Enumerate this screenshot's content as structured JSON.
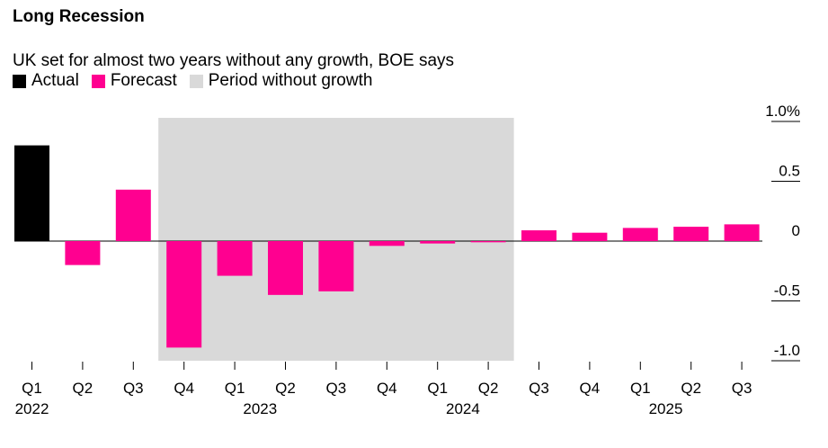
{
  "title": "Long Recession",
  "subtitle": "UK set for almost two years without any growth, BOE says",
  "legend": {
    "actual": "Actual",
    "forecast": "Forecast",
    "period": "Period without growth"
  },
  "colors": {
    "actual": "#000000",
    "forecast": "#ff0090",
    "period": "#d9d9d9"
  },
  "chart_data": {
    "type": "bar",
    "categories": [
      "Q1 2022",
      "Q2 2022",
      "Q3 2022",
      "Q4 2022",
      "Q1 2023",
      "Q2 2023",
      "Q3 2023",
      "Q4 2023",
      "Q1 2024",
      "Q2 2024",
      "Q3 2024",
      "Q4 2024",
      "Q1 2025",
      "Q2 2025",
      "Q3 2025"
    ],
    "quarter_labels": [
      "Q1",
      "Q2",
      "Q3",
      "Q4",
      "Q1",
      "Q2",
      "Q3",
      "Q4",
      "Q1",
      "Q2",
      "Q3",
      "Q4",
      "Q1",
      "Q2",
      "Q3"
    ],
    "year_labels": [
      {
        "label": "2022",
        "index": 0
      },
      {
        "label": "2023",
        "index": 4
      },
      {
        "label": "2024",
        "index": 8
      },
      {
        "label": "2025",
        "index": 12
      }
    ],
    "series": [
      {
        "name": "Actual",
        "values": [
          0.8,
          null,
          null,
          null,
          null,
          null,
          null,
          null,
          null,
          null,
          null,
          null,
          null,
          null,
          null
        ]
      },
      {
        "name": "Forecast",
        "values": [
          null,
          -0.2,
          0.43,
          -0.89,
          -0.29,
          -0.45,
          -0.42,
          -0.04,
          -0.02,
          -0.01,
          0.09,
          0.07,
          0.11,
          0.12,
          0.14
        ]
      }
    ],
    "shaded_period": {
      "start_index": 3,
      "end_index": 9,
      "label": "Period without growth"
    },
    "y_ticks": [
      "1.0%",
      "0.5",
      "0",
      "-0.5",
      "-1.0"
    ],
    "y_tick_values": [
      1.0,
      0.5,
      0,
      -0.5,
      -1.0
    ],
    "ylim": [
      -1.0,
      1.0
    ],
    "xlabel": "",
    "ylabel": ""
  }
}
